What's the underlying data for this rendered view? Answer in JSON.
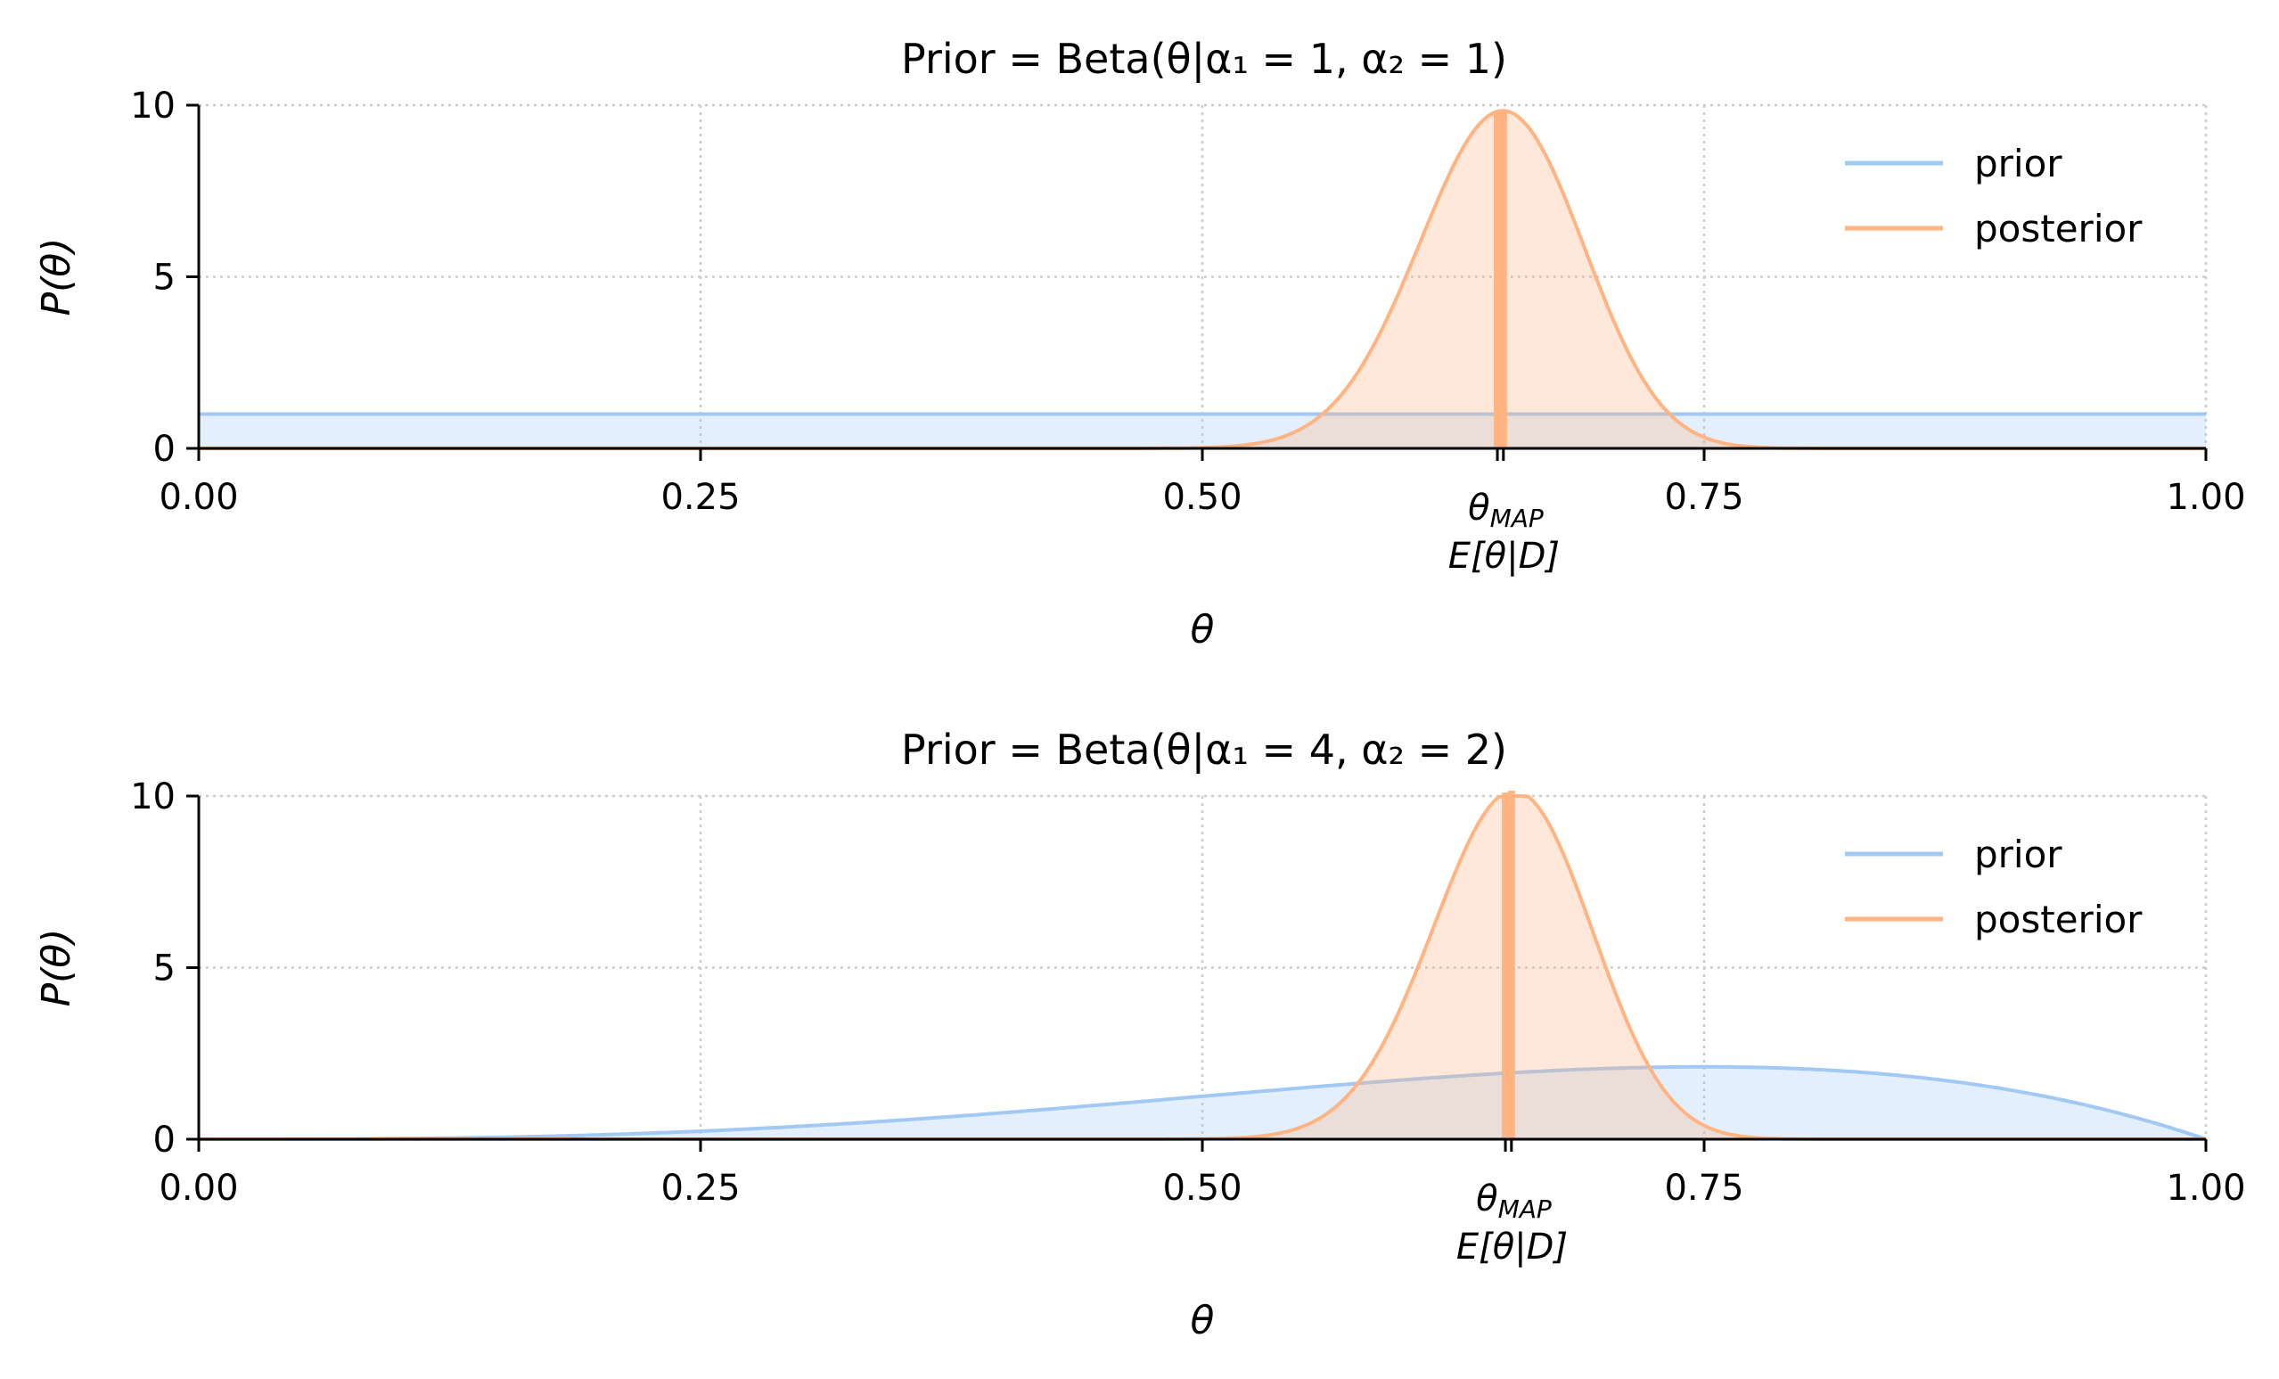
{
  "chart_data": [
    {
      "type": "area",
      "title": "Prior = Beta(θ|α₁ = 1, α₂ = 1)",
      "xlabel": "θ",
      "ylabel": "P(θ)",
      "xlim": [
        0,
        1
      ],
      "ylim": [
        0,
        10
      ],
      "xticks": [
        "0.00",
        "0.25",
        "0.50",
        "0.75",
        "1.00"
      ],
      "yticks": [
        "0",
        "5",
        "10"
      ],
      "grid": "dotted",
      "legend": {
        "position": "top-right",
        "entries": [
          "prior",
          "posterior"
        ]
      },
      "annotations": {
        "map_label": "θMAP",
        "mean_label": "E[θ|D]",
        "map_x": 0.647,
        "mean_x": 0.65
      },
      "series": [
        {
          "name": "prior",
          "color": "#a1c9f4",
          "dist": "beta",
          "a": 1,
          "b": 1
        },
        {
          "name": "posterior",
          "color": "#ffb482",
          "dist": "beta",
          "a": 90,
          "b": 49
        }
      ]
    },
    {
      "type": "area",
      "title": "Prior = Beta(θ|α₁ = 4, α₂ = 2)",
      "xlabel": "θ",
      "ylabel": "P(θ)",
      "xlim": [
        0,
        1
      ],
      "ylim": [
        0,
        10
      ],
      "xticks": [
        "0.00",
        "0.25",
        "0.50",
        "0.75",
        "1.00"
      ],
      "yticks": [
        "0",
        "5",
        "10"
      ],
      "grid": "dotted",
      "legend": {
        "position": "top-right",
        "entries": [
          "prior",
          "posterior"
        ]
      },
      "annotations": {
        "map_label": "θMAP",
        "mean_label": "E[θ|D]",
        "map_x": 0.651,
        "mean_x": 0.654
      },
      "series": [
        {
          "name": "prior",
          "color": "#a1c9f4",
          "dist": "beta",
          "a": 4,
          "b": 2
        },
        {
          "name": "posterior",
          "color": "#ffb482",
          "dist": "beta",
          "a": 96,
          "b": 51
        }
      ]
    }
  ]
}
